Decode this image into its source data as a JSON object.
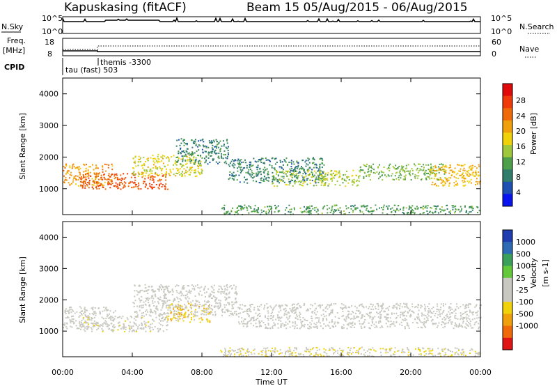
{
  "header": {
    "station": "Kapuskasing (fitACF)",
    "beam": "Beam 15 05/Aug/2015 - 06/Aug/2015"
  },
  "top_panels": {
    "nsky_label": "N.Sky",
    "nsearch_label": "N.Search",
    "count_tick_high": "10^5",
    "count_tick_low": "10^0",
    "freq_label_1": "Freq.",
    "freq_label_2": "[MHz]",
    "freq_tick_high": "18",
    "freq_tick_low": "8",
    "nave_label": "Nave",
    "nave_tick_high": "60",
    "nave_tick_low": "0",
    "cpid_label": "CPID",
    "cpid_program_1": "themis -3300",
    "cpid_program_2": "tau (fast) 503"
  },
  "axes": {
    "ylabel": "Slant Range [km]",
    "xlabel": "Time UT",
    "y_ticks": [
      "1000",
      "2000",
      "3000",
      "4000"
    ],
    "x_ticks": [
      "00:00",
      "04:00",
      "08:00",
      "12:00",
      "16:00",
      "20:00",
      "00:00"
    ]
  },
  "colorbars": {
    "power_label": "Power [dB]",
    "power_ticks": [
      "4",
      "8",
      "12",
      "16",
      "20",
      "24",
      "28"
    ],
    "power_colors": [
      "#0a14f0",
      "#1f4fb0",
      "#2f7d6a",
      "#4fa04a",
      "#9fc83c",
      "#f0d20a",
      "#f0a00a",
      "#f06a0a",
      "#f03a0a",
      "#e00a0a"
    ],
    "velocity_label_1": "Velocity",
    "velocity_label_2": "[m s-1]",
    "velocity_ticks": [
      "1000",
      "500",
      "100",
      "25",
      "-25",
      "-100",
      "-500",
      "-1000"
    ],
    "velocity_colors": [
      "#1f3cb0",
      "#2f6ab4",
      "#3aa05a",
      "#64c83c",
      "#c8c8c0",
      "#c8c8c0",
      "#f0d20a",
      "#f0a00a",
      "#f06a0a",
      "#e01414"
    ]
  },
  "chart_data": {
    "type": "heatmap",
    "x_range": [
      "00:00",
      "00:00"
    ],
    "x_ticks": [
      "00:00",
      "04:00",
      "08:00",
      "12:00",
      "16:00",
      "20:00",
      "00:00"
    ],
    "y_range_km": [
      180,
      4500
    ],
    "ylabel": "Slant Range [km]",
    "xlabel": "Time UT",
    "panels": [
      {
        "quantity": "Power [dB]",
        "scale": [
          0,
          30
        ],
        "scatter_regions": [
          {
            "t_start": 0.0,
            "t_end": 3.0,
            "r_start": 1100,
            "r_end": 1800,
            "level": 20
          },
          {
            "t_start": 1.0,
            "t_end": 6.0,
            "r_start": 1000,
            "r_end": 1500,
            "level": 24
          },
          {
            "t_start": 4.0,
            "t_end": 8.0,
            "r_start": 1400,
            "r_end": 2100,
            "level": 16
          },
          {
            "t_start": 6.5,
            "t_end": 9.5,
            "r_start": 1800,
            "r_end": 2600,
            "level": 8
          },
          {
            "t_start": 9.5,
            "t_end": 15.0,
            "r_start": 1200,
            "r_end": 2000,
            "level": 8
          },
          {
            "t_start": 12.0,
            "t_end": 17.0,
            "r_start": 1100,
            "r_end": 1600,
            "level": 14
          },
          {
            "t_start": 17.0,
            "t_end": 22.0,
            "r_start": 1300,
            "r_end": 1800,
            "level": 12
          },
          {
            "t_start": 21.0,
            "t_end": 24.0,
            "r_start": 1100,
            "r_end": 1800,
            "level": 18
          },
          {
            "t_start": 9.0,
            "t_end": 24.0,
            "r_start": 200,
            "r_end": 500,
            "level": 10
          }
        ]
      },
      {
        "quantity": "Velocity [m s-1]",
        "scale": [
          -1000,
          1000
        ],
        "scatter_regions": [
          {
            "t_start": 0.0,
            "t_end": 3.0,
            "r_start": 1100,
            "r_end": 1800,
            "level": 0
          },
          {
            "t_start": 1.0,
            "t_end": 6.0,
            "r_start": 1000,
            "r_end": 1500,
            "level": -60
          },
          {
            "t_start": 6.0,
            "t_end": 8.5,
            "r_start": 1300,
            "r_end": 1900,
            "level": -300
          },
          {
            "t_start": 4.0,
            "t_end": 10.0,
            "r_start": 1500,
            "r_end": 2500,
            "level": 0
          },
          {
            "t_start": 10.0,
            "t_end": 24.0,
            "r_start": 1100,
            "r_end": 1900,
            "level": 0
          },
          {
            "t_start": 9.0,
            "t_end": 24.0,
            "r_start": 200,
            "r_end": 500,
            "level": -150
          }
        ]
      }
    ]
  }
}
